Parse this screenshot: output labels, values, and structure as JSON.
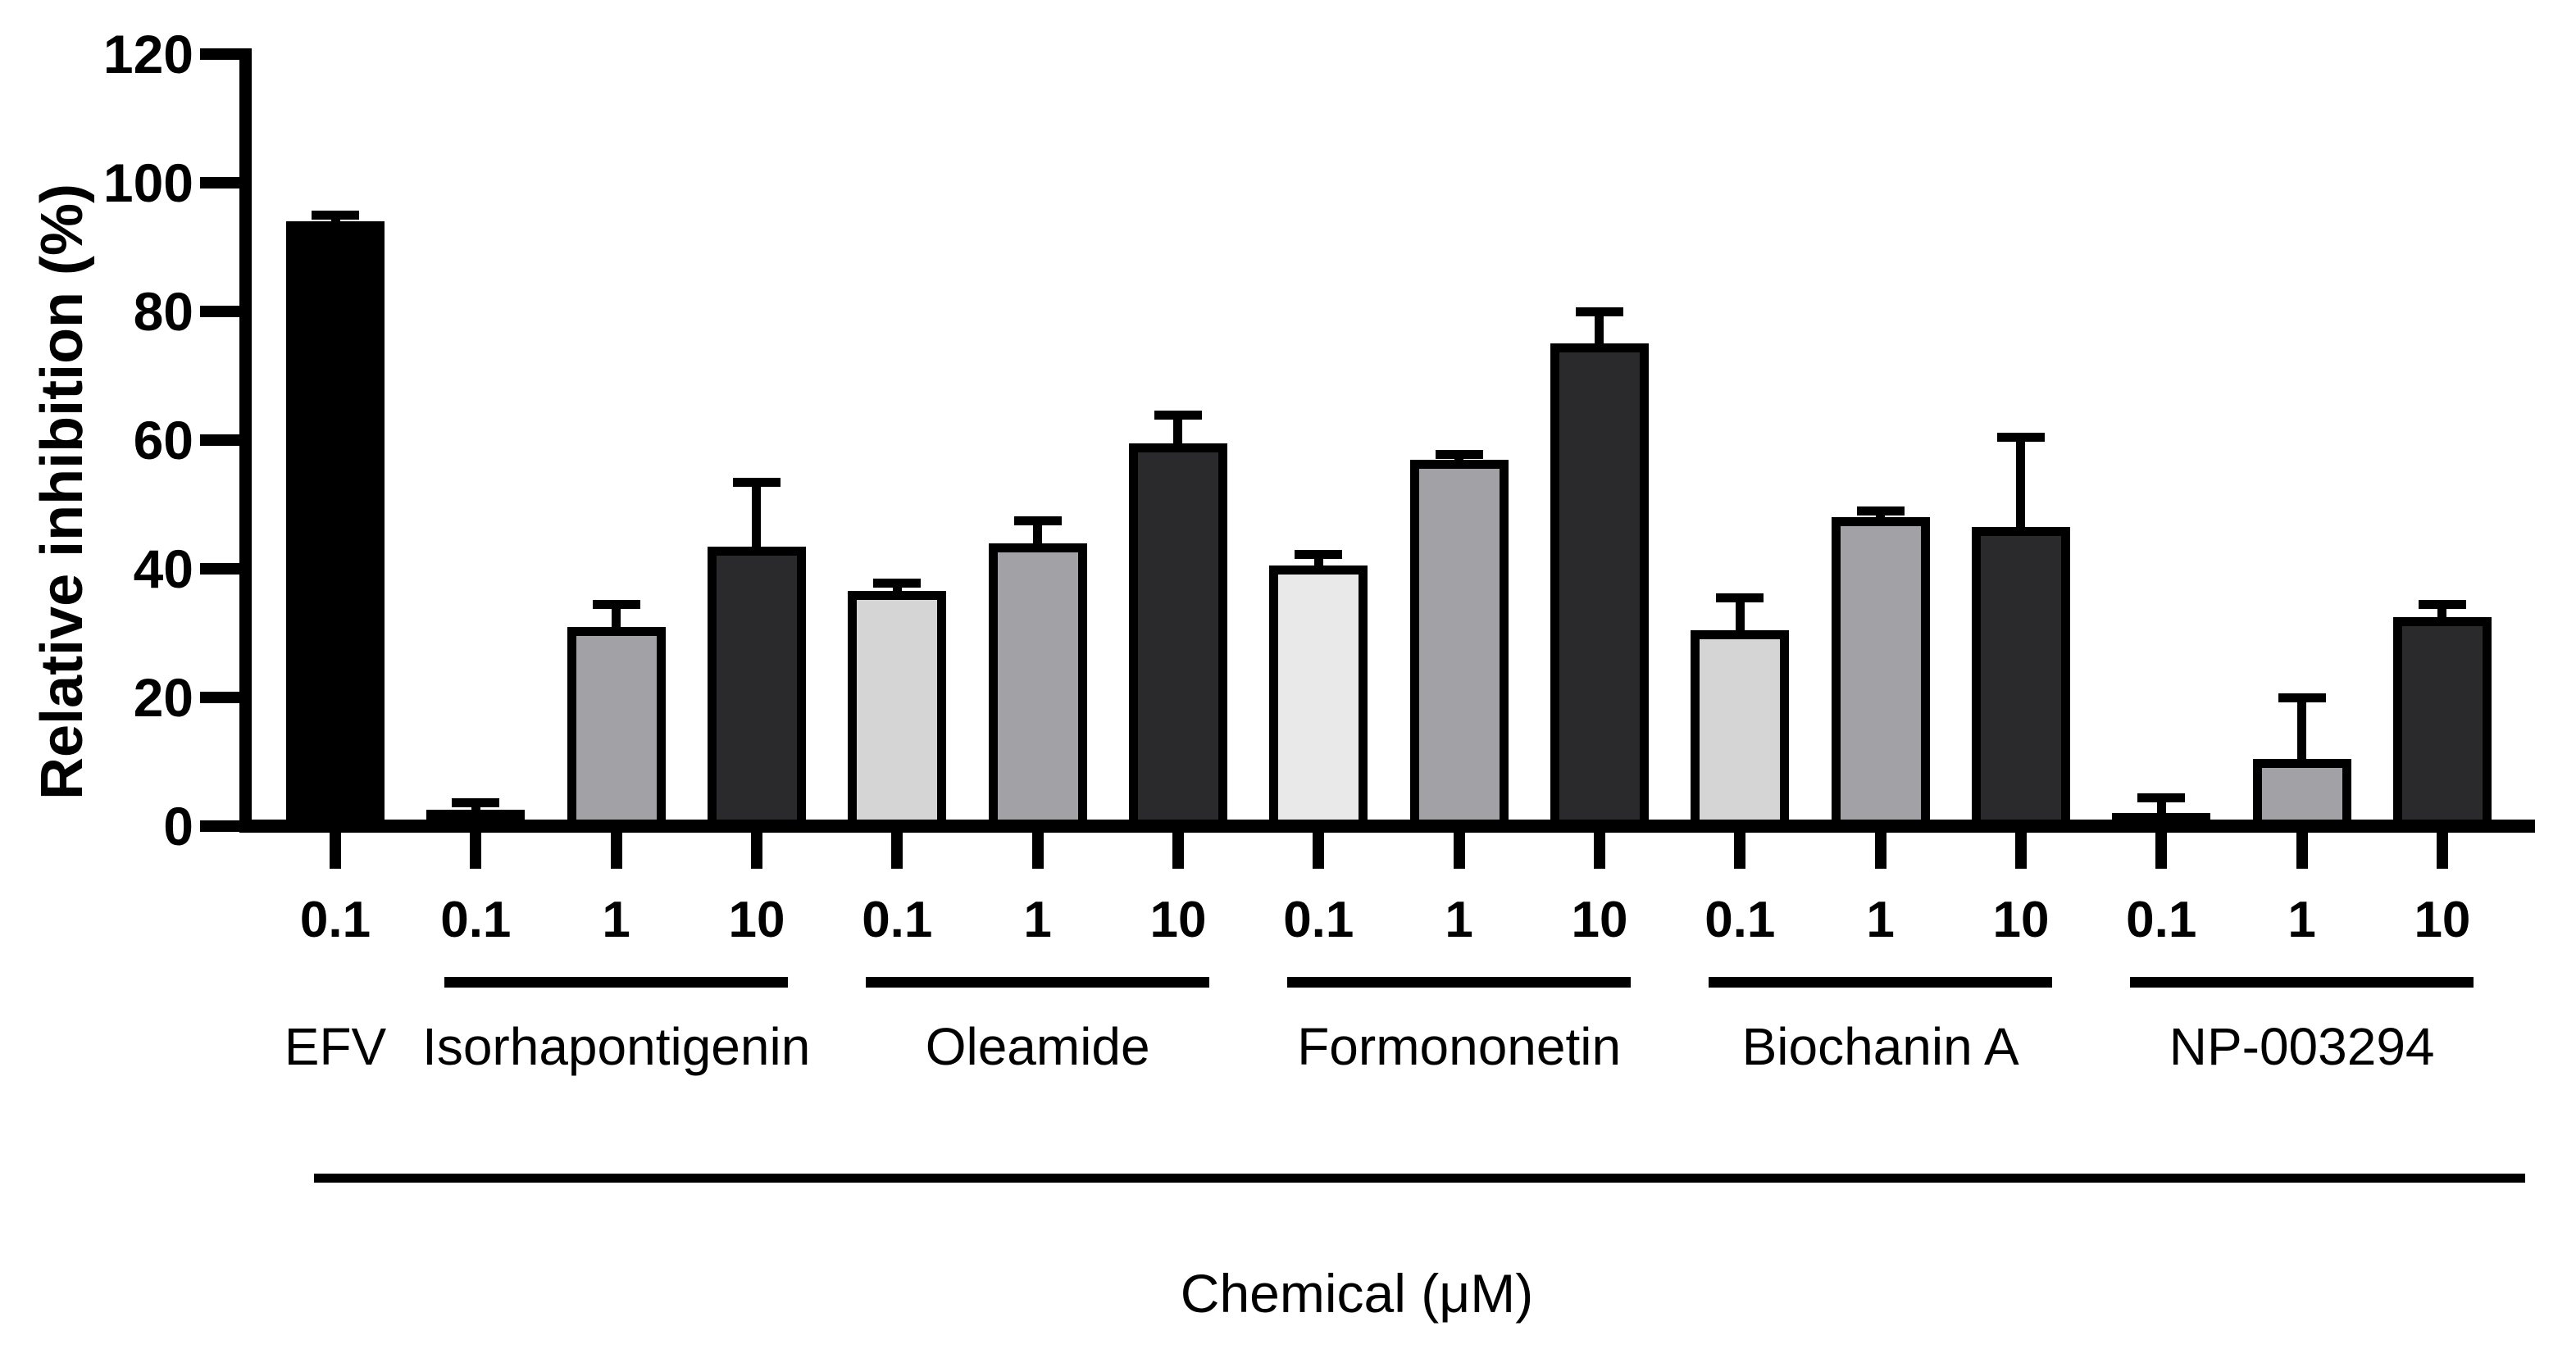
{
  "figure": {
    "background": "#ffffff",
    "axis_color": "#000000",
    "bar_outline_color": "#000000"
  },
  "chart_data": {
    "type": "bar",
    "title": "",
    "ylabel": "Relative inhibition (%)",
    "xlabel": "Chemical (μM)",
    "ylim": [
      0,
      120
    ],
    "yticks": [
      0,
      20,
      40,
      60,
      80,
      100,
      120
    ],
    "grid": false,
    "legend": "none",
    "error_bars": "upper, capped",
    "groups": [
      {
        "name": "EFV",
        "underline": false,
        "bars": [
          {
            "conc": "0.1",
            "value": 94,
            "error": 1,
            "color": "#000000"
          }
        ]
      },
      {
        "name": "Isorhapontigenin",
        "underline": true,
        "bars": [
          {
            "conc": "0.1",
            "value": 2.5,
            "error": 1.2,
            "color": "#d5d5d5"
          },
          {
            "conc": "1",
            "value": 31,
            "error": 3.5,
            "color": "#a1a1a6"
          },
          {
            "conc": "10",
            "value": 43.5,
            "error": 10,
            "color": "#2a2a2c"
          }
        ]
      },
      {
        "name": "Oleamide",
        "underline": true,
        "bars": [
          {
            "conc": "0.1",
            "value": 36.5,
            "error": 1.3,
            "color": "#d5d5d5"
          },
          {
            "conc": "1",
            "value": 44,
            "error": 3.5,
            "color": "#a1a1a6"
          },
          {
            "conc": "10",
            "value": 59.5,
            "error": 4.5,
            "color": "#2a2a2c"
          }
        ]
      },
      {
        "name": "Formononetin",
        "underline": true,
        "bars": [
          {
            "conc": "0.1",
            "value": 40.5,
            "error": 1.8,
            "color": "#e9e9e9"
          },
          {
            "conc": "1",
            "value": 57,
            "error": 0.8,
            "color": "#a1a1a6"
          },
          {
            "conc": "10",
            "value": 75,
            "error": 5,
            "color": "#2a2a2c"
          }
        ]
      },
      {
        "name": "Biochanin A",
        "underline": true,
        "bars": [
          {
            "conc": "0.1",
            "value": 30.5,
            "error": 5,
            "color": "#d5d5d5"
          },
          {
            "conc": "1",
            "value": 48,
            "error": 1,
            "color": "#a1a1a6"
          },
          {
            "conc": "10",
            "value": 46.5,
            "error": 14,
            "color": "#2a2a2c"
          }
        ]
      },
      {
        "name": "NP-003294",
        "underline": true,
        "bars": [
          {
            "conc": "0.1",
            "value": 2,
            "error": 2.5,
            "color": "#d5d5d5"
          },
          {
            "conc": "1",
            "value": 10.5,
            "error": 9.5,
            "color": "#a1a1a6"
          },
          {
            "conc": "10",
            "value": 32.5,
            "error": 2,
            "color": "#2a2a2c"
          }
        ]
      }
    ]
  }
}
